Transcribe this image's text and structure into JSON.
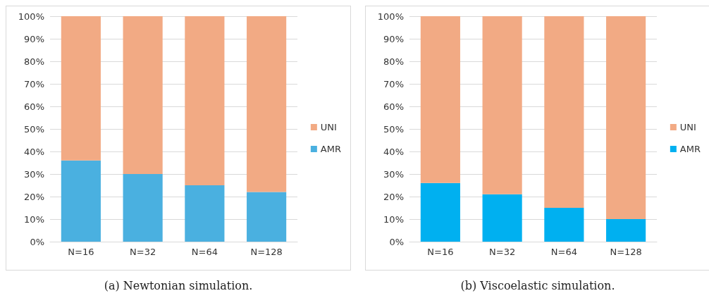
{
  "chart_data": [
    {
      "type": "bar",
      "title": "(a) Newtonian simulation.",
      "categories": [
        "N=16",
        "N=32",
        "N=64",
        "N=128"
      ],
      "stacked": true,
      "legend": "right",
      "grid": "y",
      "ylim": [
        0,
        100
      ],
      "yticks": [
        {
          "value": 0,
          "label": "0%"
        },
        {
          "value": 10,
          "label": "10%"
        },
        {
          "value": 20,
          "label": "20%"
        },
        {
          "value": 30,
          "label": "30%"
        },
        {
          "value": 40,
          "label": "40%"
        },
        {
          "value": 50,
          "label": "50%"
        },
        {
          "value": 60,
          "label": "60%"
        },
        {
          "value": 70,
          "label": "70%"
        },
        {
          "value": 80,
          "label": "80%"
        },
        {
          "value": 90,
          "label": "90%"
        },
        {
          "value": 100,
          "label": "100%"
        }
      ],
      "series": [
        {
          "name": "AMR",
          "color": "#4ab0e0",
          "values": [
            36,
            30,
            25,
            22
          ]
        },
        {
          "name": "UNI",
          "color": "#f2aa84",
          "values": [
            64,
            70,
            75,
            78
          ]
        }
      ]
    },
    {
      "type": "bar",
      "title": "(b) Viscoelastic simulation.",
      "categories": [
        "N=16",
        "N=32",
        "N=64",
        "N=128"
      ],
      "stacked": true,
      "legend": "right",
      "grid": "y",
      "ylim": [
        0,
        100
      ],
      "yticks": [
        {
          "value": 0,
          "label": "0%"
        },
        {
          "value": 10,
          "label": "10%"
        },
        {
          "value": 20,
          "label": "20%"
        },
        {
          "value": 30,
          "label": "30%"
        },
        {
          "value": 40,
          "label": "40%"
        },
        {
          "value": 50,
          "label": "50%"
        },
        {
          "value": 60,
          "label": "60%"
        },
        {
          "value": 70,
          "label": "70%"
        },
        {
          "value": 80,
          "label": "80%"
        },
        {
          "value": 90,
          "label": "90%"
        },
        {
          "value": 100,
          "label": "100%"
        }
      ],
      "series": [
        {
          "name": "AMR",
          "color": "#00b0f0",
          "values": [
            26,
            21,
            15,
            10
          ]
        },
        {
          "name": "UNI",
          "color": "#f2aa84",
          "values": [
            74,
            79,
            85,
            90
          ]
        }
      ]
    }
  ]
}
